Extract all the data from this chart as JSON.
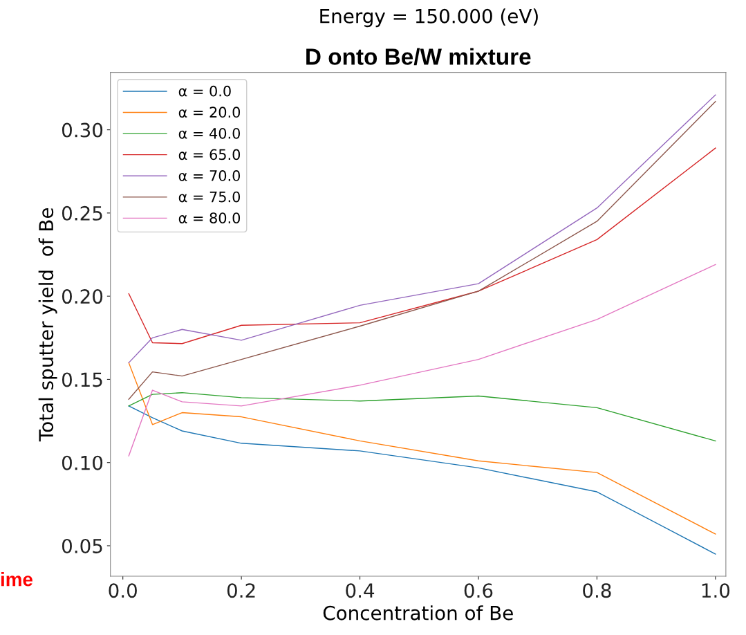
{
  "chart_data": {
    "type": "line",
    "title": "D onto Be/W mixture",
    "subtitle": "Energy = 150.000 (eV)",
    "xlabel": "Concentration of Be",
    "ylabel": "Total sputter yield  of Be",
    "x": [
      0.01,
      0.05,
      0.1,
      0.2,
      0.4,
      0.6,
      0.8,
      1.0
    ],
    "series": [
      {
        "name": "α = 0.0",
        "color": "#1f77b4",
        "values": [
          0.134,
          0.127,
          0.119,
          0.1116,
          0.107,
          0.0968,
          0.0824,
          0.045
        ]
      },
      {
        "name": "α = 20.0",
        "color": "#ff7f0e",
        "values": [
          0.16,
          0.1228,
          0.13,
          0.1275,
          0.113,
          0.101,
          0.094,
          0.057
        ]
      },
      {
        "name": "α = 40.0",
        "color": "#2ca02c",
        "values": [
          0.134,
          0.141,
          0.142,
          0.139,
          0.137,
          0.14,
          0.133,
          0.113
        ]
      },
      {
        "name": "α = 65.0",
        "color": "#d62728",
        "values": [
          0.2015,
          0.172,
          0.1715,
          0.1825,
          0.184,
          0.203,
          0.234,
          0.289
        ]
      },
      {
        "name": "α = 70.0",
        "color": "#9467bd",
        "values": [
          0.16,
          0.175,
          0.18,
          0.1735,
          0.1945,
          0.2075,
          0.253,
          0.321
        ]
      },
      {
        "name": "α = 75.0",
        "color": "#8c564b",
        "values": [
          0.138,
          0.1545,
          0.152,
          0.162,
          0.182,
          0.203,
          0.245,
          0.317
        ]
      },
      {
        "name": "α = 80.0",
        "color": "#e377c2",
        "values": [
          0.104,
          0.1435,
          0.1365,
          0.134,
          0.1465,
          0.162,
          0.186,
          0.219
        ]
      }
    ],
    "xlim": [
      -0.021,
      1.0175
    ],
    "ylim": [
      0.0317,
      0.3345
    ],
    "xticks": [
      {
        "value": 0.0,
        "label": "0.0"
      },
      {
        "value": 0.2,
        "label": "0.2"
      },
      {
        "value": 0.4,
        "label": "0.4"
      },
      {
        "value": 0.6,
        "label": "0.6"
      },
      {
        "value": 0.8,
        "label": "0.8"
      },
      {
        "value": 1.0,
        "label": "1.0"
      }
    ],
    "yticks": [
      {
        "value": 0.05,
        "label": "0.05"
      },
      {
        "value": 0.1,
        "label": "0.10"
      },
      {
        "value": 0.15,
        "label": "0.15"
      },
      {
        "value": 0.2,
        "label": "0.20"
      },
      {
        "value": 0.25,
        "label": "0.25"
      },
      {
        "value": 0.3,
        "label": "0.30"
      }
    ],
    "grid": false,
    "legend": "top left",
    "marker": "none",
    "line_style": "solid",
    "annotations": [
      "ime"
    ]
  }
}
